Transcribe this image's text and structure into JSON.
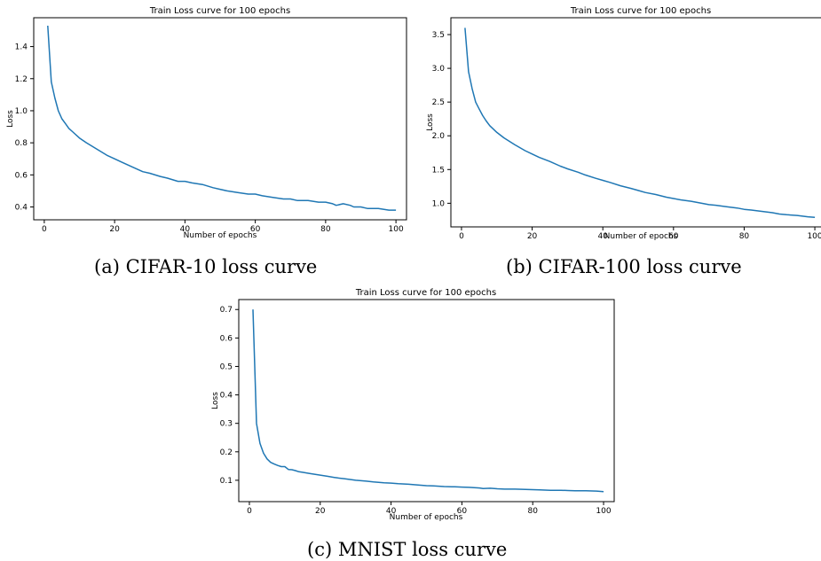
{
  "chart_data": [
    {
      "type": "line",
      "title": "Train Loss curve for 100 epochs",
      "xlabel": "Number of epochs",
      "ylabel": "Loss",
      "xlim": [
        -3,
        103
      ],
      "ylim": [
        0.32,
        1.58
      ],
      "xticks": [
        0,
        20,
        40,
        60,
        80,
        100
      ],
      "yticks": [
        0.4,
        0.6,
        0.8,
        1.0,
        1.2,
        1.4
      ],
      "yticklabels": [
        "0.4",
        "0.6",
        "0.8",
        "1.0",
        "1.2",
        "1.4"
      ],
      "grid": false,
      "series": [
        {
          "color": "#1f77b4",
          "x": [
            1,
            2,
            3,
            4,
            5,
            6,
            7,
            8,
            10,
            12,
            15,
            18,
            20,
            22,
            25,
            28,
            30,
            33,
            35,
            38,
            40,
            42,
            45,
            48,
            50,
            52,
            55,
            58,
            60,
            62,
            65,
            68,
            70,
            72,
            75,
            78,
            80,
            82,
            83,
            85,
            87,
            88,
            90,
            92,
            95,
            98,
            100
          ],
          "y": [
            1.53,
            1.18,
            1.08,
            1.0,
            0.95,
            0.92,
            0.89,
            0.87,
            0.83,
            0.8,
            0.76,
            0.72,
            0.7,
            0.68,
            0.65,
            0.62,
            0.61,
            0.59,
            0.58,
            0.56,
            0.56,
            0.55,
            0.54,
            0.52,
            0.51,
            0.5,
            0.49,
            0.48,
            0.48,
            0.47,
            0.46,
            0.45,
            0.45,
            0.44,
            0.44,
            0.43,
            0.43,
            0.42,
            0.41,
            0.42,
            0.41,
            0.4,
            0.4,
            0.39,
            0.39,
            0.38,
            0.38
          ]
        }
      ]
    },
    {
      "type": "line",
      "title": "Train Loss curve for 100 epochs",
      "xlabel": "Number of epochs",
      "ylabel": "Loss",
      "xlim": [
        -3,
        103
      ],
      "ylim": [
        0.65,
        3.75
      ],
      "xticks": [
        0,
        20,
        40,
        60,
        80,
        100
      ],
      "yticks": [
        1.0,
        1.5,
        2.0,
        2.5,
        3.0,
        3.5
      ],
      "yticklabels": [
        "1.0",
        "1.5",
        "2.0",
        "2.5",
        "3.0",
        "3.5"
      ],
      "grid": false,
      "series": [
        {
          "color": "#1f77b4",
          "x": [
            1,
            2,
            3,
            4,
            5,
            6,
            7,
            8,
            10,
            12,
            15,
            18,
            20,
            22,
            25,
            28,
            30,
            33,
            35,
            38,
            40,
            42,
            45,
            48,
            50,
            52,
            55,
            58,
            60,
            62,
            65,
            68,
            70,
            72,
            75,
            78,
            80,
            82,
            85,
            88,
            90,
            92,
            95,
            98,
            100
          ],
          "y": [
            3.6,
            2.95,
            2.7,
            2.5,
            2.4,
            2.3,
            2.22,
            2.15,
            2.05,
            1.97,
            1.87,
            1.78,
            1.73,
            1.68,
            1.62,
            1.55,
            1.51,
            1.46,
            1.42,
            1.37,
            1.34,
            1.31,
            1.26,
            1.22,
            1.19,
            1.16,
            1.13,
            1.09,
            1.07,
            1.05,
            1.03,
            1.0,
            0.98,
            0.97,
            0.95,
            0.93,
            0.91,
            0.9,
            0.88,
            0.86,
            0.84,
            0.83,
            0.82,
            0.8,
            0.79
          ]
        }
      ]
    },
    {
      "type": "line",
      "title": "Train Loss curve for 100 epochs",
      "xlabel": "Number of epochs",
      "ylabel": "Loss",
      "xlim": [
        -3,
        103
      ],
      "ylim": [
        0.025,
        0.735
      ],
      "xticks": [
        0,
        20,
        40,
        60,
        80,
        100
      ],
      "yticks": [
        0.1,
        0.2,
        0.3,
        0.4,
        0.5,
        0.6,
        0.7
      ],
      "yticklabels": [
        "0.1",
        "0.2",
        "0.3",
        "0.4",
        "0.5",
        "0.6",
        "0.7"
      ],
      "grid": false,
      "series": [
        {
          "color": "#1f77b4",
          "x": [
            1,
            2,
            3,
            4,
            5,
            6,
            7,
            8,
            9,
            10,
            11,
            12,
            13,
            14,
            15,
            17,
            20,
            22,
            24,
            25,
            27,
            30,
            33,
            35,
            38,
            40,
            42,
            45,
            48,
            50,
            52,
            55,
            58,
            60,
            62,
            65,
            66,
            68,
            70,
            72,
            75,
            78,
            80,
            82,
            85,
            88,
            90,
            92,
            95,
            98,
            100
          ],
          "y": [
            0.7,
            0.3,
            0.23,
            0.195,
            0.175,
            0.163,
            0.157,
            0.152,
            0.148,
            0.148,
            0.138,
            0.137,
            0.134,
            0.13,
            0.128,
            0.124,
            0.118,
            0.114,
            0.11,
            0.108,
            0.105,
            0.1,
            0.097,
            0.094,
            0.091,
            0.09,
            0.088,
            0.086,
            0.083,
            0.081,
            0.08,
            0.078,
            0.077,
            0.076,
            0.075,
            0.073,
            0.071,
            0.072,
            0.07,
            0.069,
            0.069,
            0.068,
            0.067,
            0.066,
            0.065,
            0.065,
            0.064,
            0.063,
            0.063,
            0.062,
            0.06
          ]
        }
      ]
    }
  ],
  "captions": [
    "(a) CIFAR-10 loss curve",
    "(b) CIFAR-100 loss curve",
    "(c) MNIST loss curve"
  ]
}
